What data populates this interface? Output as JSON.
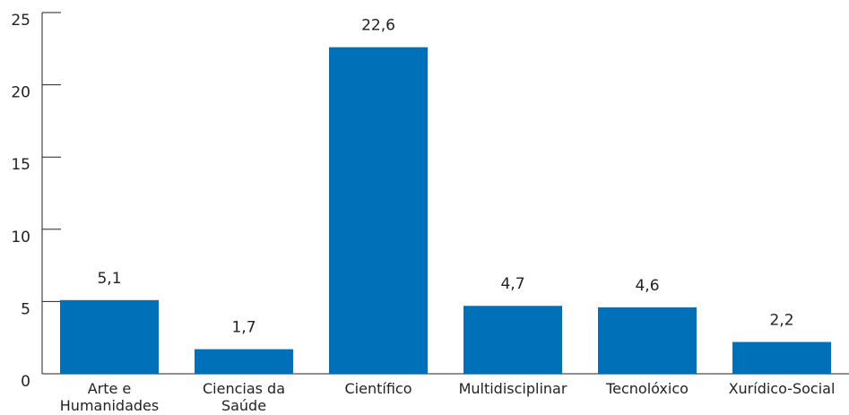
{
  "chart_data": {
    "type": "bar",
    "categories": [
      "Arte e\nHumanidades",
      "Ciencias da\nSaúde",
      "Científico",
      "Multidisciplinar",
      "Tecnolóxico",
      "Xurídico-Social"
    ],
    "values": [
      5.1,
      1.7,
      22.6,
      4.7,
      4.6,
      2.2
    ],
    "value_labels": [
      "5,1",
      "1,7",
      "22,6",
      "4,7",
      "4,6",
      "2,2"
    ],
    "color": "#0070b8",
    "ylim": [
      0,
      25
    ],
    "yticks": [
      0,
      5,
      10,
      15,
      20,
      25
    ],
    "grid": false
  }
}
